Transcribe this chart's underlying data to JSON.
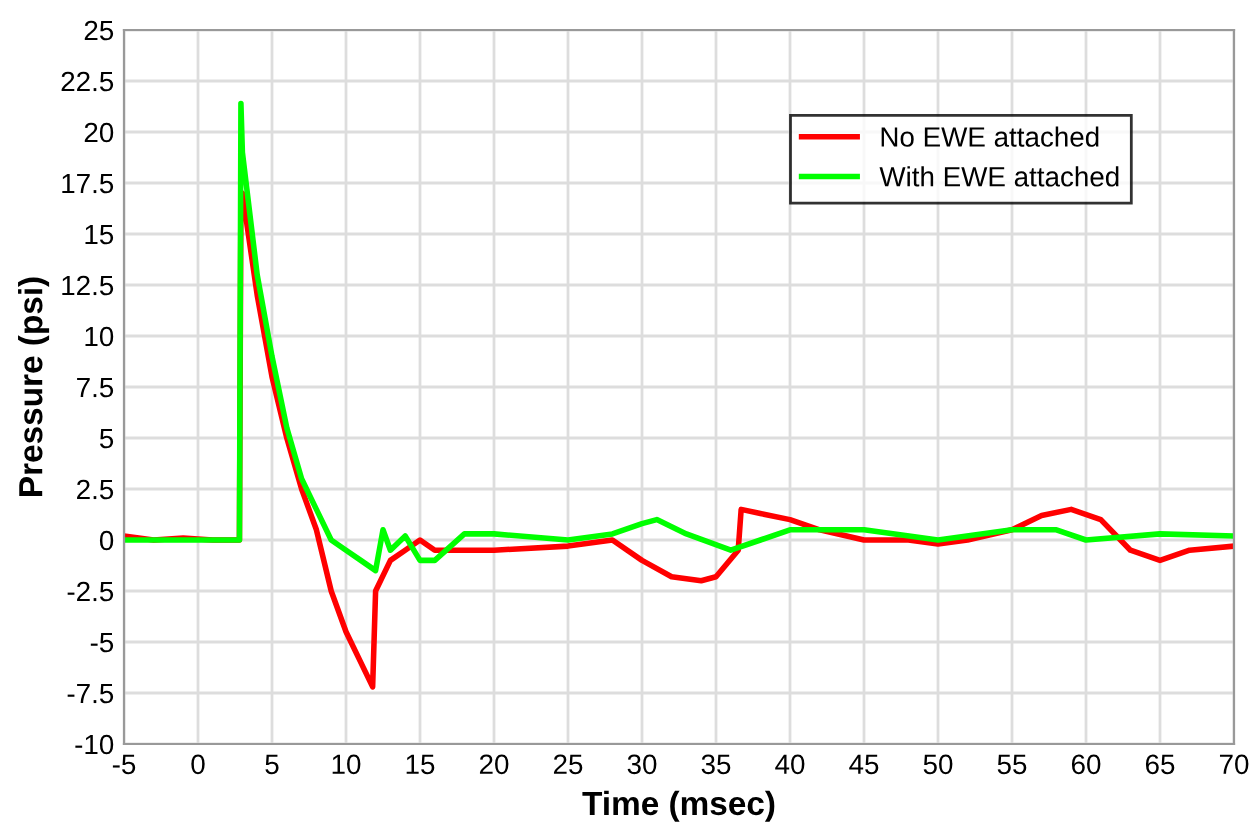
{
  "chart_data": {
    "type": "line",
    "xlabel": "Time (msec)",
    "ylabel": "Pressure (psi)",
    "xlim": [
      -5,
      70
    ],
    "xticks": [
      -5,
      0,
      5,
      10,
      15,
      20,
      25,
      30,
      35,
      40,
      45,
      50,
      55,
      60,
      65,
      70
    ],
    "ylim": [
      -10,
      25
    ],
    "yticks": [
      -10,
      -7.5,
      -5,
      -2.5,
      0,
      2.5,
      5,
      7.5,
      10,
      12.5,
      15,
      17.5,
      20,
      22.5,
      25
    ],
    "grid": true,
    "legend": "top right",
    "marker": "none",
    "line_style": "solid",
    "series": [
      {
        "name": "No EWE attached",
        "color": "#ff0000",
        "x": [
          -5,
          -3,
          -1,
          1,
          2.8,
          2.9,
          3,
          4,
          5,
          6,
          7,
          8,
          9,
          10,
          11,
          11.8,
          12,
          13,
          14,
          15,
          16,
          18,
          20,
          25,
          28,
          30,
          32,
          34,
          35,
          36.5,
          36.7,
          38,
          40,
          42,
          45,
          48,
          50,
          52,
          55,
          57,
          59,
          61,
          63,
          65,
          67,
          70
        ],
        "values": [
          0.2,
          0,
          0.1,
          0,
          0,
          16.9,
          17,
          12,
          8,
          5,
          2.5,
          0.5,
          -2.5,
          -4.5,
          -6,
          -7.2,
          -2.5,
          -1,
          -0.5,
          0,
          -0.5,
          -0.5,
          -0.5,
          -0.3,
          0,
          -1,
          -1.8,
          -2,
          -1.8,
          -0.5,
          1.5,
          1.3,
          1,
          0.5,
          0,
          0,
          -0.2,
          0,
          0.5,
          1.2,
          1.5,
          1,
          -0.5,
          -1,
          -0.5,
          -0.3
        ]
      },
      {
        "name": "With EWE attached",
        "color": "#00ff00",
        "x": [
          -5,
          -1,
          2.8,
          2.9,
          3,
          4,
          5,
          6,
          7,
          8,
          9,
          10,
          11,
          12,
          12.5,
          13,
          14,
          15,
          16,
          18,
          20,
          25,
          28,
          30,
          31,
          33,
          36,
          38,
          40,
          45,
          50,
          55,
          58,
          60,
          65,
          70
        ],
        "values": [
          0,
          0,
          0,
          21.4,
          19,
          13,
          9,
          5.5,
          3,
          1.5,
          0,
          -0.5,
          -1,
          -1.5,
          0.5,
          -0.5,
          0.2,
          -1,
          -1,
          0.3,
          0.3,
          0,
          0.3,
          0.8,
          1,
          0.3,
          -0.5,
          0,
          0.5,
          0.5,
          0,
          0.5,
          0.5,
          0,
          0.3,
          0.2
        ]
      }
    ]
  }
}
